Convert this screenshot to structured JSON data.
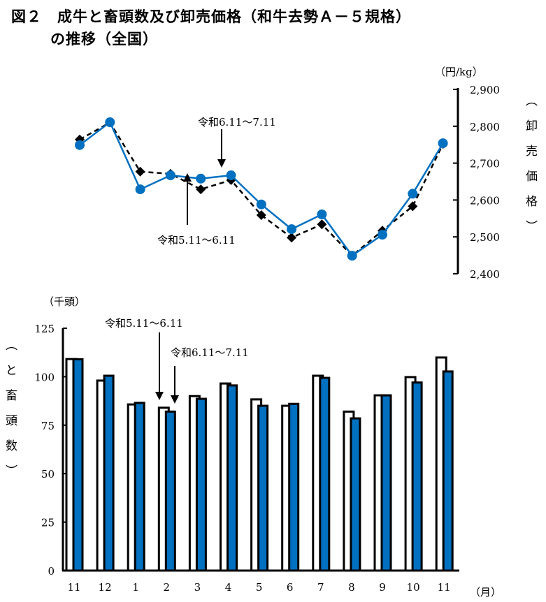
{
  "title": {
    "line1": "図２　成牛と畜頭数及び卸売価格（和牛去勢Ａ－５規格）",
    "line2": "の推移（全国）"
  },
  "colors": {
    "blue": "#0070c0",
    "black": "#000000",
    "white": "#ffffff"
  },
  "chart_data": [
    {
      "type": "line",
      "categories": [
        "11",
        "12",
        "1",
        "2",
        "3",
        "4",
        "5",
        "6",
        "7",
        "8",
        "9",
        "10",
        "11"
      ],
      "unit": "（円/kg）",
      "ylabel": "（卸売価格）",
      "ylabel_chars": [
        "（",
        "卸",
        "売",
        "価",
        "格",
        "）"
      ],
      "ylim": [
        2400,
        2900
      ],
      "yticks": [
        "2,900",
        "2,800",
        "2,700",
        "2,600",
        "2,500",
        "2,400"
      ],
      "axis_side": "right",
      "series": [
        {
          "name": "令和5.11～6.11",
          "style": "dashed-black-diamond",
          "values": [
            2764,
            2810,
            2677,
            2671,
            2629,
            2654,
            2559,
            2498,
            2534,
            2449,
            2517,
            2583,
            2752
          ]
        },
        {
          "name": "令和6.11～7.11",
          "style": "solid-blue-circle",
          "values": [
            2749,
            2811,
            2629,
            2667,
            2658,
            2667,
            2588,
            2521,
            2561,
            2449,
            2506,
            2617,
            2754
          ]
        }
      ]
    },
    {
      "type": "bar",
      "categories": [
        "11",
        "12",
        "1",
        "2",
        "3",
        "4",
        "5",
        "6",
        "7",
        "8",
        "9",
        "10",
        "11"
      ],
      "unit": "（千頭）",
      "xunit": "（月）",
      "ylabel": "（と畜頭数）",
      "ylabel_chars": [
        "（",
        "と",
        "畜",
        "頭",
        "数",
        "）"
      ],
      "ylim": [
        0,
        125
      ],
      "yticks": [
        "125",
        "100",
        "75",
        "50",
        "25",
        "0"
      ],
      "series": [
        {
          "name": "令和5.11～6.11",
          "style": "white",
          "values": [
            109.1,
            98.0,
            85.7,
            84.0,
            90.0,
            96.5,
            88.3,
            85.0,
            100.5,
            82.0,
            90.4,
            99.8,
            109.9
          ]
        },
        {
          "name": "令和6.11～7.11",
          "style": "blue",
          "values": [
            109.0,
            100.5,
            86.5,
            82.0,
            88.6,
            95.5,
            85.0,
            86.0,
            99.4,
            78.5,
            90.4,
            97.0,
            102.7
          ]
        }
      ]
    }
  ]
}
